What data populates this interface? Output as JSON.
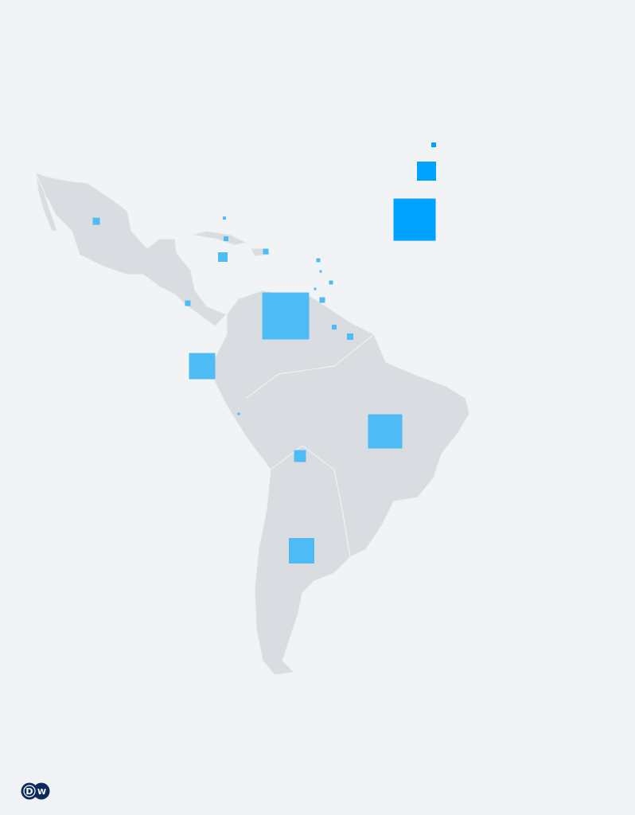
{
  "map": {
    "region": "latin-america",
    "land_color": "#d9dde1",
    "border_color": "#eef0f2",
    "background_color": "#f2f3f5",
    "symbol_shape": "square",
    "symbol_color": "#47b8f5",
    "legend_symbol_color": "#00a2ff",
    "legend_symbols": 3
  },
  "logo": {
    "text": "DW",
    "color": "#0c2a5b"
  }
}
